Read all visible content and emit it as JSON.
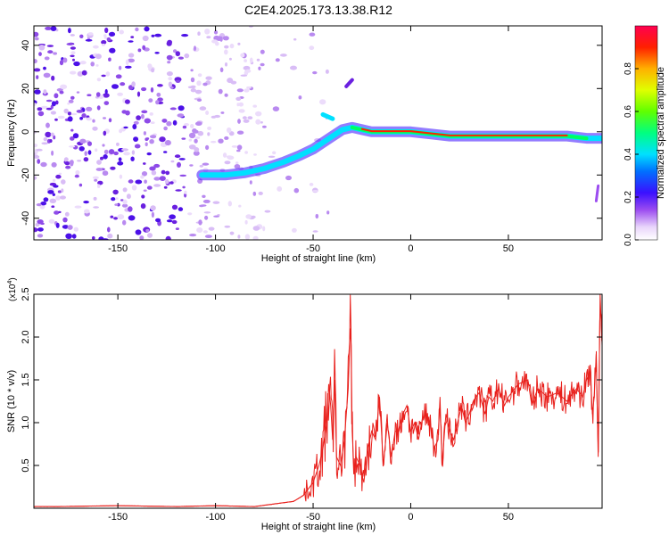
{
  "figure_title": "C2E4.2025.173.13.38.R12",
  "chart_data": [
    {
      "type": "heatmap",
      "title": "C2E4.2025.173.13.38.R12",
      "xlabel": "Height of straight line (km)",
      "ylabel": "Frequency (Hz)",
      "xlim": [
        -193,
        98
      ],
      "ylim": [
        -50,
        49
      ],
      "xticks": [
        -150,
        -100,
        -50,
        0,
        50
      ],
      "yticks": [
        -40,
        -20,
        0,
        20,
        40
      ],
      "colorbar": {
        "label": "Normalized spectral amplitude",
        "ticks": [
          0.0,
          0.2,
          0.4,
          0.6,
          0.8
        ],
        "range": [
          0,
          1
        ],
        "colormap": [
          "#ffffff",
          "#e0c8f8",
          "#7a2be6",
          "#2400ff",
          "#00e0ff",
          "#00ff60",
          "#c8ff00",
          "#ff8000",
          "#ff0000",
          "#ff0060"
        ]
      },
      "ridge": {
        "x": [
          -107,
          -95,
          -85,
          -75,
          -65,
          -57,
          -50,
          -45,
          -40,
          -35,
          -30,
          -25,
          -20,
          -10,
          0,
          10,
          20,
          40,
          60,
          80,
          90,
          98
        ],
        "freq": [
          -20,
          -20,
          -19,
          -17,
          -14,
          -11,
          -8,
          -5,
          -2,
          1,
          2,
          1,
          0,
          0,
          0,
          -1,
          -2,
          -2,
          -2,
          -2,
          -3,
          -3
        ]
      },
      "grid": false
    },
    {
      "type": "line",
      "xlabel": "Height of straight line (km)",
      "ylabel": "SNR (10 * v/v)",
      "y_multiplier": "(x10",
      "y_multiplier_exp": "4",
      "y_multiplier_close": ")",
      "xlim": [
        -193,
        98
      ],
      "ylim": [
        0,
        2.5
      ],
      "xticks": [
        -150,
        -100,
        -50,
        0,
        50
      ],
      "yticks": [
        0.5,
        1.0,
        1.5,
        2.0,
        2.5
      ],
      "series": [
        {
          "color": "#e8201c",
          "x": [
            -193,
            -180,
            -150,
            -120,
            -100,
            -80,
            -70,
            -60,
            -55,
            -50,
            -47,
            -45,
            -43,
            -42,
            -41,
            -40,
            -39,
            -38,
            -36,
            -34,
            -32,
            -31,
            -30.5,
            -30,
            -29,
            -28,
            -26,
            -24,
            -22,
            -20,
            -18,
            -16,
            -14,
            -12,
            -10,
            -8,
            -6,
            -4,
            -2,
            0,
            2,
            4,
            6,
            8,
            10,
            12,
            14,
            15,
            16,
            18,
            20,
            22,
            24,
            26,
            28,
            30,
            32,
            35,
            38,
            40,
            42,
            45,
            48,
            50,
            55,
            60,
            62,
            65,
            70,
            75,
            80,
            85,
            88,
            90,
            92,
            93,
            94,
            95,
            96,
            97,
            98
          ],
          "y": [
            0.02,
            0.02,
            0.03,
            0.02,
            0.03,
            0.02,
            0.05,
            0.08,
            0.15,
            0.3,
            0.5,
            0.7,
            1.0,
            1.45,
            1.2,
            0.8,
            1.5,
            0.6,
            0.5,
            0.8,
            1.4,
            2.1,
            1.9,
            0.9,
            0.4,
            0.6,
            0.5,
            0.3,
            0.7,
            0.9,
            0.8,
            1.3,
            0.5,
            1.0,
            0.6,
            0.9,
            0.9,
            1.1,
            1.2,
            0.9,
            1.0,
            0.8,
            1.05,
            1.1,
            1.0,
            0.7,
            0.8,
            1.3,
            0.5,
            1.1,
            0.9,
            0.8,
            1.0,
            1.2,
            1.0,
            1.1,
            1.25,
            1.35,
            1.1,
            1.3,
            1.25,
            1.4,
            1.2,
            1.3,
            1.45,
            1.5,
            1.2,
            1.4,
            1.3,
            1.35,
            1.25,
            1.4,
            1.3,
            1.5,
            1.6,
            1.1,
            1.3,
            1.8,
            0.6,
            2.5,
            1.9
          ]
        }
      ],
      "grid": false
    }
  ]
}
